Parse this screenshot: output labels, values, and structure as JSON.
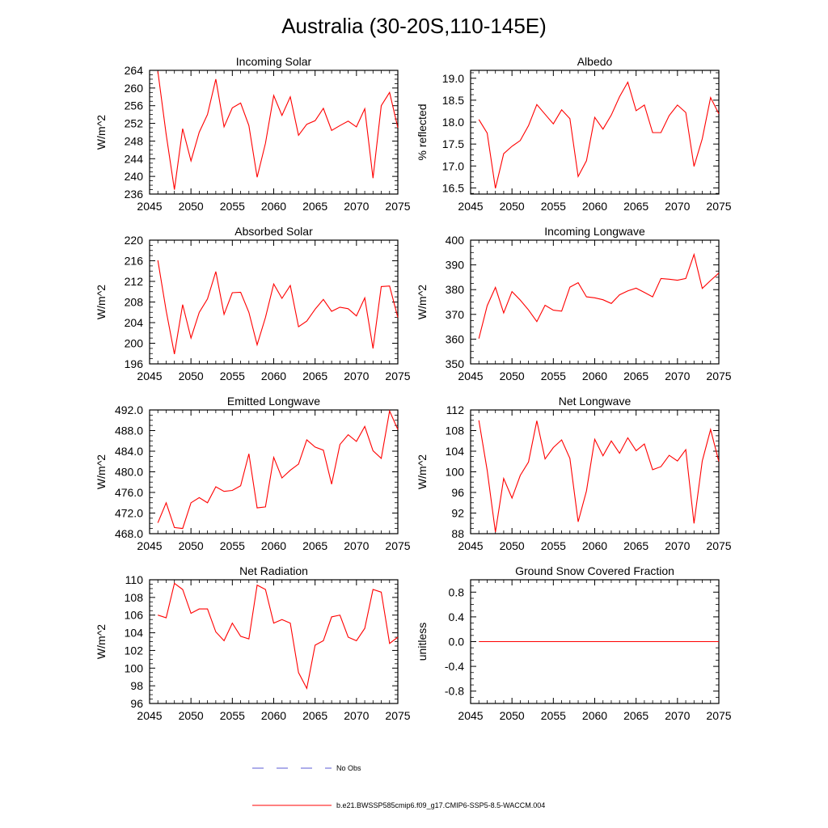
{
  "title": "Australia (30-20S,110-145E)",
  "legend": {
    "obs_label": "No Obs",
    "model_label": "b.e21.BWSSP585cmip6.f09_g17.CMIP6-SSP5-8.5-WACCM.004",
    "obs_color": "#5b5bd6",
    "model_color": "#ff0000"
  },
  "chart_data": [
    {
      "type": "line",
      "title": "Incoming Solar",
      "ylabel": "W/m^2",
      "xlim": [
        2045,
        2075
      ],
      "ylim": [
        236,
        264
      ],
      "xticks": [
        2045,
        2050,
        2055,
        2060,
        2065,
        2070,
        2075
      ],
      "yticks": [
        "236",
        "240",
        "244",
        "248",
        "252",
        "256",
        "260",
        "264"
      ],
      "x": [
        2046,
        2047,
        2048,
        2049,
        2050,
        2051,
        2052,
        2053,
        2054,
        2055,
        2056,
        2057,
        2058,
        2059,
        2060,
        2061,
        2062,
        2063,
        2064,
        2065,
        2066,
        2067,
        2068,
        2069,
        2070,
        2071,
        2072,
        2073,
        2074,
        2075
      ],
      "values": [
        263.8,
        249.5,
        237.0,
        250.8,
        243.5,
        250.0,
        254.0,
        262.0,
        251.2,
        255.5,
        256.6,
        251.5,
        239.8,
        247.5,
        258.3,
        253.8,
        258.0,
        249.3,
        251.8,
        252.6,
        255.4,
        250.4,
        251.5,
        252.5,
        251.2,
        255.3,
        239.6,
        256.0,
        259.0,
        251.0
      ]
    },
    {
      "type": "line",
      "title": "Albedo",
      "ylabel": "% reflected",
      "xlim": [
        2045,
        2075
      ],
      "ylim": [
        16.36,
        19.18
      ],
      "xticks": [
        2045,
        2050,
        2055,
        2060,
        2065,
        2070,
        2075
      ],
      "yticks": [
        "16.5",
        "17.0",
        "17.5",
        "18.0",
        "18.5",
        "19.0"
      ],
      "x": [
        2046,
        2047,
        2048,
        2049,
        2050,
        2051,
        2052,
        2053,
        2054,
        2055,
        2056,
        2057,
        2058,
        2059,
        2060,
        2061,
        2062,
        2063,
        2064,
        2065,
        2066,
        2067,
        2068,
        2069,
        2070,
        2071,
        2072,
        2073,
        2074,
        2075
      ],
      "values": [
        18.06,
        17.75,
        16.49,
        17.28,
        17.45,
        17.58,
        17.92,
        18.4,
        18.18,
        17.96,
        18.28,
        18.08,
        16.76,
        17.12,
        18.11,
        17.84,
        18.16,
        18.58,
        18.91,
        18.26,
        18.39,
        17.76,
        17.76,
        18.15,
        18.39,
        18.22,
        16.99,
        17.62,
        18.56,
        18.19
      ]
    },
    {
      "type": "line",
      "title": "Absorbed Solar",
      "ylabel": "W/m^2",
      "xlim": [
        2045,
        2075
      ],
      "ylim": [
        196,
        220
      ],
      "xticks": [
        2045,
        2050,
        2055,
        2060,
        2065,
        2070,
        2075
      ],
      "yticks": [
        "196",
        "200",
        "204",
        "208",
        "212",
        "216",
        "220"
      ],
      "x": [
        2046,
        2047,
        2048,
        2049,
        2050,
        2051,
        2052,
        2053,
        2054,
        2055,
        2056,
        2057,
        2058,
        2059,
        2060,
        2061,
        2062,
        2063,
        2064,
        2065,
        2066,
        2067,
        2068,
        2069,
        2070,
        2071,
        2072,
        2073,
        2074,
        2075
      ],
      "values": [
        216.1,
        206.3,
        197.9,
        207.5,
        201.0,
        206.0,
        208.6,
        213.9,
        205.6,
        209.8,
        209.9,
        206.0,
        199.7,
        205.0,
        211.5,
        208.7,
        211.2,
        203.2,
        204.3,
        206.6,
        208.5,
        206.2,
        207.0,
        206.7,
        205.3,
        208.8,
        199.0,
        211.0,
        211.1,
        205.0
      ]
    },
    {
      "type": "line",
      "title": "Incoming Longwave",
      "ylabel": "W/m^2",
      "xlim": [
        2045,
        2075
      ],
      "ylim": [
        350,
        400
      ],
      "xticks": [
        2045,
        2050,
        2055,
        2060,
        2065,
        2070,
        2075
      ],
      "yticks": [
        "350",
        "360",
        "370",
        "380",
        "390",
        "400"
      ],
      "x": [
        2046,
        2047,
        2048,
        2049,
        2050,
        2051,
        2052,
        2053,
        2054,
        2055,
        2056,
        2057,
        2058,
        2059,
        2060,
        2061,
        2062,
        2063,
        2064,
        2065,
        2066,
        2067,
        2068,
        2069,
        2070,
        2071,
        2072,
        2073,
        2074,
        2075
      ],
      "values": [
        360.2,
        373.5,
        380.9,
        370.6,
        379.2,
        375.8,
        371.8,
        367.1,
        373.7,
        371.7,
        371.3,
        381.0,
        382.8,
        377.1,
        376.7,
        375.9,
        374.4,
        377.9,
        379.5,
        380.6,
        378.9,
        377.1,
        384.5,
        384.2,
        383.8,
        384.5,
        394.2,
        380.5,
        383.7,
        386.7
      ]
    },
    {
      "type": "line",
      "title": "Emitted Longwave",
      "ylabel": "W/m^2",
      "xlim": [
        2045,
        2075
      ],
      "ylim": [
        468,
        492
      ],
      "xticks": [
        2045,
        2050,
        2055,
        2060,
        2065,
        2070,
        2075
      ],
      "yticks": [
        "468.0",
        "472.0",
        "476.0",
        "480.0",
        "484.0",
        "488.0",
        "492.0"
      ],
      "x": [
        2046,
        2047,
        2048,
        2049,
        2050,
        2051,
        2052,
        2053,
        2054,
        2055,
        2056,
        2057,
        2058,
        2059,
        2060,
        2061,
        2062,
        2063,
        2064,
        2065,
        2066,
        2067,
        2068,
        2069,
        2070,
        2071,
        2072,
        2073,
        2074,
        2075
      ],
      "values": [
        470.1,
        474.0,
        469.2,
        469.0,
        474.0,
        475.0,
        474.0,
        477.1,
        476.2,
        476.4,
        477.3,
        483.5,
        473.0,
        473.2,
        482.8,
        478.8,
        480.3,
        481.5,
        486.2,
        484.8,
        484.2,
        477.6,
        485.3,
        487.2,
        485.9,
        488.8,
        484.1,
        482.6,
        491.8,
        488.2
      ]
    },
    {
      "type": "line",
      "title": "Net Longwave",
      "ylabel": "W/m^2",
      "xlim": [
        2045,
        2075
      ],
      "ylim": [
        88,
        112
      ],
      "xticks": [
        2045,
        2050,
        2055,
        2060,
        2065,
        2070,
        2075
      ],
      "yticks": [
        "88",
        "92",
        "96",
        "100",
        "104",
        "108",
        "112"
      ],
      "x": [
        2046,
        2047,
        2048,
        2049,
        2050,
        2051,
        2052,
        2053,
        2054,
        2055,
        2056,
        2057,
        2058,
        2059,
        2060,
        2061,
        2062,
        2063,
        2064,
        2065,
        2066,
        2067,
        2068,
        2069,
        2070,
        2071,
        2072,
        2073,
        2074,
        2075
      ],
      "values": [
        110.0,
        100.3,
        88.3,
        98.7,
        94.9,
        99.3,
        101.9,
        109.9,
        102.5,
        104.7,
        106.2,
        102.6,
        90.3,
        96.3,
        106.3,
        103.1,
        106.0,
        103.6,
        106.6,
        104.1,
        105.4,
        100.4,
        101.0,
        103.2,
        102.1,
        104.3,
        90.0,
        102.1,
        108.2,
        102.0
      ]
    },
    {
      "type": "line",
      "title": "Net Radiation",
      "ylabel": "W/m^2",
      "xlim": [
        2045,
        2075
      ],
      "ylim": [
        96,
        110
      ],
      "xticks": [
        2045,
        2050,
        2055,
        2060,
        2065,
        2070,
        2075
      ],
      "yticks": [
        "96",
        "98",
        "100",
        "102",
        "104",
        "106",
        "108",
        "110"
      ],
      "x": [
        2046,
        2047,
        2048,
        2049,
        2050,
        2051,
        2052,
        2053,
        2054,
        2055,
        2056,
        2057,
        2058,
        2059,
        2060,
        2061,
        2062,
        2063,
        2064,
        2065,
        2066,
        2067,
        2068,
        2069,
        2070,
        2071,
        2072,
        2073,
        2074,
        2075
      ],
      "values": [
        106.0,
        105.7,
        109.6,
        108.9,
        106.2,
        106.7,
        106.7,
        104.1,
        103.1,
        105.1,
        103.6,
        103.3,
        109.4,
        108.9,
        105.1,
        105.5,
        105.1,
        99.5,
        97.7,
        102.6,
        103.1,
        105.8,
        106.0,
        103.5,
        103.1,
        104.5,
        108.9,
        108.6,
        102.8,
        103.5
      ]
    },
    {
      "type": "line",
      "title": "Ground Snow Covered Fraction",
      "ylabel": "unitless",
      "xlim": [
        2045,
        2075
      ],
      "ylim": [
        -1.0,
        1.0
      ],
      "xticks": [
        2045,
        2050,
        2055,
        2060,
        2065,
        2070,
        2075
      ],
      "yticks": [
        "-0.8",
        "-0.4",
        "0.0",
        "0.4",
        "0.8"
      ],
      "x": [
        2046,
        2047,
        2048,
        2049,
        2050,
        2051,
        2052,
        2053,
        2054,
        2055,
        2056,
        2057,
        2058,
        2059,
        2060,
        2061,
        2062,
        2063,
        2064,
        2065,
        2066,
        2067,
        2068,
        2069,
        2070,
        2071,
        2072,
        2073,
        2074,
        2075
      ],
      "values": [
        0,
        0,
        0,
        0,
        0,
        0,
        0,
        0,
        0,
        0,
        0,
        0,
        0,
        0,
        0,
        0,
        0,
        0,
        0,
        0,
        0,
        0,
        0,
        0,
        0,
        0,
        0,
        0,
        0,
        0
      ]
    }
  ]
}
